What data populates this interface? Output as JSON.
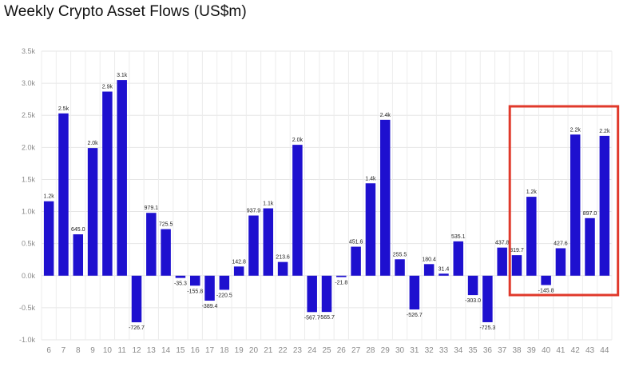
{
  "chart_data": {
    "type": "bar",
    "title": "Weekly Crypto Asset Flows (US$m)",
    "xlabel": "",
    "ylabel": "",
    "ylim": [
      -1000,
      3500
    ],
    "yticks": [
      -1000,
      -500,
      0,
      500,
      1000,
      1500,
      2000,
      2500,
      3000,
      3500
    ],
    "ytick_labels": [
      "-1.0k",
      "-0.5k",
      "0.0k",
      "0.5k",
      "1.0k",
      "1.5k",
      "2.0k",
      "2.5k",
      "3.0k",
      "3.5k"
    ],
    "grid": true,
    "categories": [
      "6",
      "7",
      "8",
      "9",
      "10",
      "11",
      "12",
      "13",
      "14",
      "15",
      "16",
      "17",
      "18",
      "19",
      "20",
      "21",
      "22",
      "23",
      "24",
      "25",
      "26",
      "27",
      "28",
      "29",
      "30",
      "31",
      "32",
      "33",
      "34",
      "35",
      "36",
      "37",
      "38",
      "39",
      "40",
      "41",
      "42",
      "43",
      "44"
    ],
    "values": [
      1160,
      2530,
      645.0,
      1990,
      2870,
      3050,
      -726.7,
      979.1,
      725.5,
      -35.3,
      -155.8,
      -389.4,
      -220.5,
      142.8,
      937.9,
      1050,
      213.6,
      2040,
      -567.7,
      -565.7,
      -21.8,
      451.6,
      1440,
      2430,
      255.5,
      -526.7,
      180.4,
      31.4,
      535.1,
      -303.0,
      -725.3,
      437.8,
      319.7,
      1230,
      -145.8,
      427.6,
      2200,
      897.0,
      2180
    ],
    "data_labels": [
      "1.2k",
      "2.5k",
      "645.0",
      "2.0k",
      "2.9k",
      "3.1k",
      "-726.7",
      "979.1",
      "725.5",
      "-35.3",
      "-155.8",
      "-389.4",
      "-220.5",
      "142.8",
      "937.9",
      "1.1k",
      "213.6",
      "2.0k",
      "-567.7",
      "-565.7",
      "-21.8",
      "451.6",
      "1.4k",
      "2.4k",
      "255.5",
      "-526.7",
      "180.4",
      "31.4",
      "535.1",
      "-303.0",
      "-725.3",
      "437.8",
      "319.7",
      "1.2k",
      "-145.8",
      "427.6",
      "2.2k",
      "897.0",
      "2.2k"
    ],
    "bar_color": "#1e10cf",
    "highlight": {
      "from_category": "38",
      "to_category": "44",
      "color": "#e0392b"
    }
  }
}
